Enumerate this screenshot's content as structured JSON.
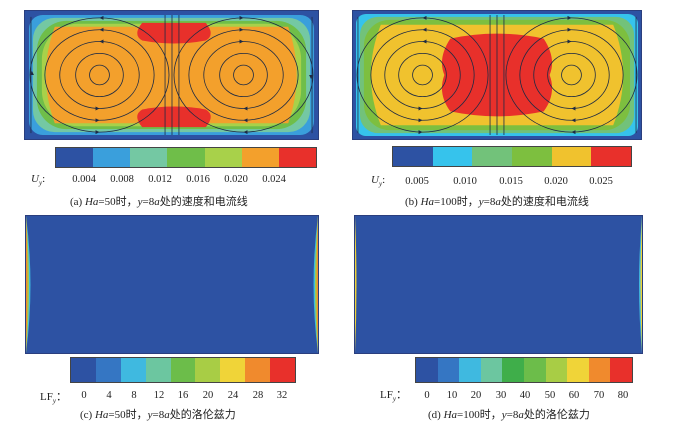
{
  "panels": {
    "a": {
      "quantity_symbol": "U",
      "quantity_sub": "y",
      "separator": ":",
      "colors": [
        "#2d52a3",
        "#3a9fdc",
        "#74c8a3",
        "#6fbe49",
        "#a8d14a",
        "#f3a02c",
        "#e8302b"
      ],
      "ticks": [
        "0.004",
        "0.008",
        "0.012",
        "0.016",
        "0.020",
        "0.024"
      ],
      "caption": {
        "prefix": "(a) ",
        "param": "Ha",
        "eq": "=50时，",
        "var": "y",
        "eqa": "=8",
        "var2": "a",
        "suffix": "处的速度和电流线"
      }
    },
    "b": {
      "quantity_symbol": "U",
      "quantity_sub": "y",
      "separator": ":",
      "colors": [
        "#2d52a3",
        "#36c3ec",
        "#72c27a",
        "#7dbf3f",
        "#f0c22e",
        "#e8302b"
      ],
      "ticks": [
        "0.005",
        "0.010",
        "0.015",
        "0.020",
        "0.025"
      ],
      "caption": {
        "prefix": "(b) ",
        "param": "Ha",
        "eq": "=100时，",
        "var": "y",
        "eqa": "=8",
        "var2": "a",
        "suffix": "处的速度和电流线"
      }
    },
    "c": {
      "quantity_symbol": "LF",
      "quantity_sub": "y",
      "separator": "：",
      "colors": [
        "#2d52a3",
        "#3576c3",
        "#3fb9e0",
        "#6cc6a0",
        "#6cbd4a",
        "#a8cd45",
        "#f0d438",
        "#f08a2d",
        "#e8302b"
      ],
      "ticks": [
        "0",
        "4",
        "8",
        "12",
        "16",
        "20",
        "24",
        "28",
        "32"
      ],
      "caption": {
        "prefix": "(c) ",
        "param": "Ha",
        "eq": "=50时，",
        "var": "y",
        "eqa": "=8",
        "var2": "a",
        "suffix": "处的洛伦兹力"
      }
    },
    "d": {
      "quantity_symbol": "LF",
      "quantity_sub": "y",
      "separator": "：",
      "colors": [
        "#2d52a3",
        "#3576c3",
        "#3fb9e0",
        "#6cc6a0",
        "#3fae4a",
        "#6cbd4a",
        "#a8cd45",
        "#f0d438",
        "#f08a2d",
        "#e8302b"
      ],
      "ticks": [
        "0",
        "10",
        "20",
        "30",
        "40",
        "50",
        "60",
        "70",
        "80"
      ],
      "caption": {
        "prefix": "(d) ",
        "param": "Ha",
        "eq": "=100时，",
        "var": "y",
        "eqa": "=8",
        "var2": "a",
        "suffix": "处的洛伦兹力"
      }
    }
  }
}
